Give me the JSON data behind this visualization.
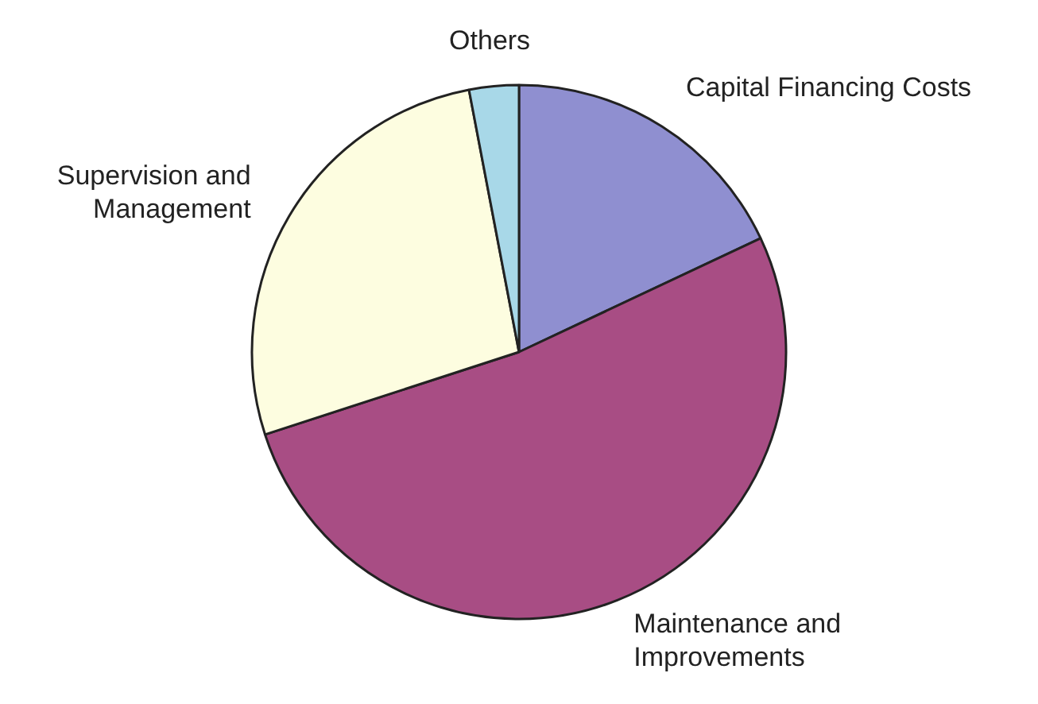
{
  "chart_data": {
    "type": "pie",
    "categories": [
      "Capital Financing Costs",
      "Maintenance and Improvements",
      "Supervision and Management",
      "Others"
    ],
    "values": [
      18,
      52,
      27,
      3
    ],
    "colors": [
      "#8f8fd0",
      "#a84d84",
      "#fdfde0",
      "#a8d8e8"
    ]
  }
}
